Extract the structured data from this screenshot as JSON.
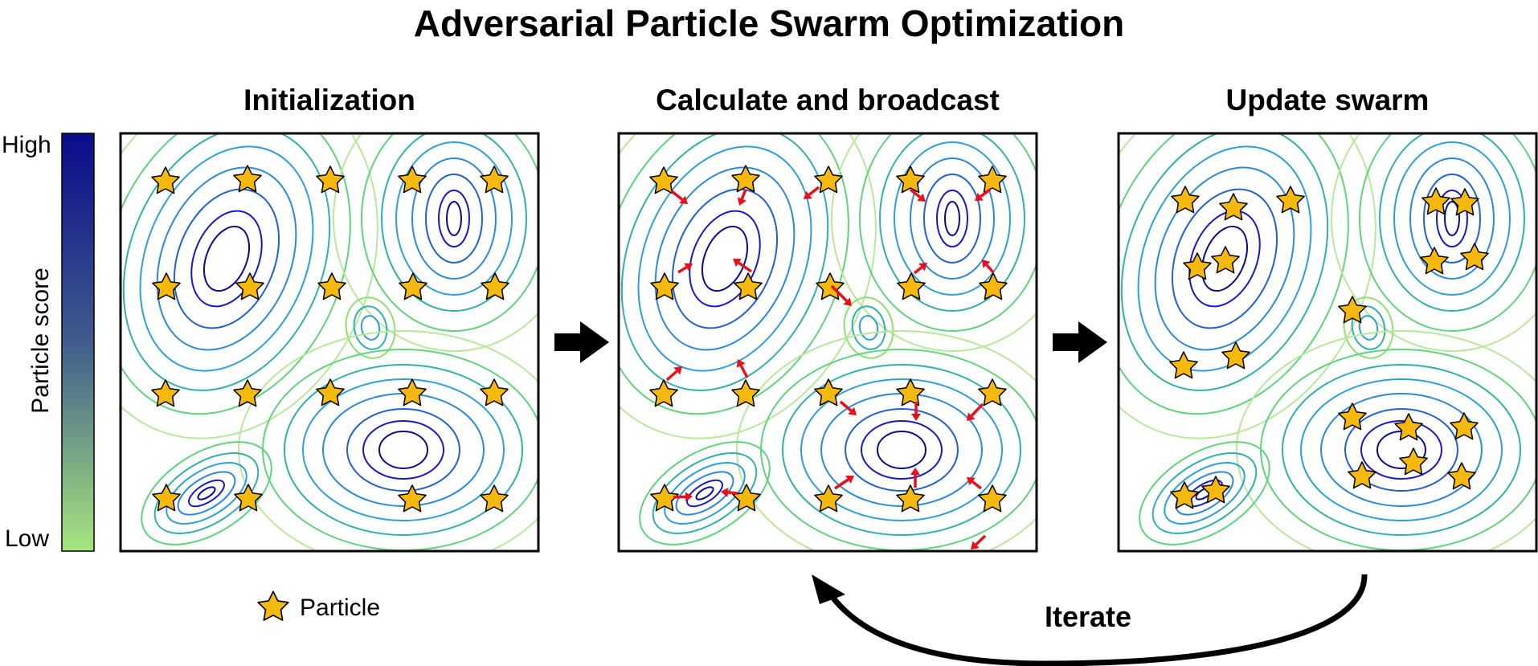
{
  "figure": {
    "title": "Adversarial Particle Swarm Optimization",
    "panels": [
      {
        "title": "Initialization"
      },
      {
        "title": "Calculate and broadcast"
      },
      {
        "title": "Update swarm"
      }
    ],
    "colorbar": {
      "label": "Particle score",
      "high_label": "High",
      "low_label": "Low",
      "high_color": "#0a0a8c",
      "low_color": "#a6e67f"
    },
    "legend": {
      "particle_label": "Particle",
      "star_color": "#f5b90d"
    },
    "loop_label": "Iterate",
    "arrow_color": "#e8101a"
  }
}
